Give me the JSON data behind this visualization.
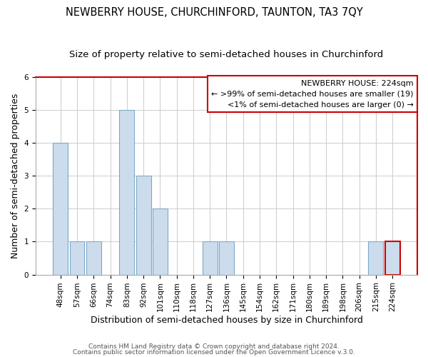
{
  "title": "NEWBERRY HOUSE, CHURCHINFORD, TAUNTON, TA3 7QY",
  "subtitle": "Size of property relative to semi-detached houses in Churchinford",
  "xlabel": "Distribution of semi-detached houses by size in Churchinford",
  "ylabel": "Number of semi-detached properties",
  "categories": [
    "48sqm",
    "57sqm",
    "66sqm",
    "74sqm",
    "83sqm",
    "92sqm",
    "101sqm",
    "110sqm",
    "118sqm",
    "127sqm",
    "136sqm",
    "145sqm",
    "154sqm",
    "162sqm",
    "171sqm",
    "180sqm",
    "189sqm",
    "198sqm",
    "206sqm",
    "215sqm",
    "224sqm"
  ],
  "values": [
    4,
    1,
    1,
    0,
    5,
    3,
    2,
    0,
    0,
    1,
    1,
    0,
    0,
    0,
    0,
    0,
    0,
    0,
    0,
    1,
    1
  ],
  "bar_color_normal": "#ccdcec",
  "bar_edgecolor_normal": "#7aaac8",
  "bar_edgecolor_highlight": "#cc0000",
  "highlight_index": 20,
  "ylim": [
    0,
    6
  ],
  "yticks": [
    0,
    1,
    2,
    3,
    4,
    5,
    6
  ],
  "legend_title": "NEWBERRY HOUSE: 224sqm",
  "legend_line1": "← >99% of semi-detached houses are smaller (19)",
  "legend_line2": "<1% of semi-detached houses are larger (0) →",
  "footer1": "Contains HM Land Registry data © Crown copyright and database right 2024.",
  "footer2": "Contains public sector information licensed under the Open Government Licence v.3.0.",
  "title_fontsize": 10.5,
  "subtitle_fontsize": 9.5,
  "axis_label_fontsize": 9,
  "tick_fontsize": 7.5,
  "legend_fontsize": 8,
  "footer_fontsize": 6.5,
  "background_color": "#ffffff",
  "plot_bg_color": "#ffffff",
  "grid_color": "#cccccc",
  "legend_box_edgecolor": "#cc0000",
  "spine_red_color": "#cc0000",
  "spine_normal_color": "#aaaaaa"
}
